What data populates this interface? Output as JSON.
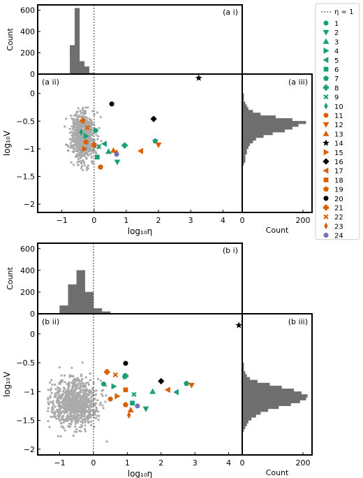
{
  "chart_data": {
    "type": "scatter",
    "reference_line_label": "η = 1",
    "legend": {
      "placement": "right",
      "entries": [
        {
          "id": "1",
          "marker": "circle",
          "color": "#1b9e77"
        },
        {
          "id": "2",
          "marker": "tri-down",
          "color": "#1b9e77"
        },
        {
          "id": "3",
          "marker": "tri-up",
          "color": "#1b9e77"
        },
        {
          "id": "4",
          "marker": "tri-right",
          "color": "#1b9e77"
        },
        {
          "id": "5",
          "marker": "tri-left",
          "color": "#1b9e77"
        },
        {
          "id": "6",
          "marker": "square",
          "color": "#1b9e77"
        },
        {
          "id": "7",
          "marker": "pentagon",
          "color": "#1b9e77"
        },
        {
          "id": "8",
          "marker": "plus",
          "color": "#1b9e77"
        },
        {
          "id": "9",
          "marker": "x",
          "color": "#1b9e77"
        },
        {
          "id": "10",
          "marker": "thin-diamond",
          "color": "#1b9e77"
        },
        {
          "id": "11",
          "marker": "circle",
          "color": "#d95f02"
        },
        {
          "id": "12",
          "marker": "tri-down",
          "color": "#d95f02"
        },
        {
          "id": "13",
          "marker": "tri-up",
          "color": "#d95f02"
        },
        {
          "id": "14",
          "marker": "star",
          "color": "#000000"
        },
        {
          "id": "15",
          "marker": "tri-right",
          "color": "#d95f02"
        },
        {
          "id": "16",
          "marker": "diamond",
          "color": "#000000"
        },
        {
          "id": "17",
          "marker": "tri-left",
          "color": "#d95f02"
        },
        {
          "id": "18",
          "marker": "square",
          "color": "#d95f02"
        },
        {
          "id": "19",
          "marker": "pentagon",
          "color": "#d95f02"
        },
        {
          "id": "20",
          "marker": "circle",
          "color": "#000000"
        },
        {
          "id": "21",
          "marker": "plus",
          "color": "#d95f02"
        },
        {
          "id": "22",
          "marker": "x",
          "color": "#d95f02"
        },
        {
          "id": "23",
          "marker": "thin-diamond",
          "color": "#d95f02"
        },
        {
          "id": "24",
          "marker": "circle",
          "color": "#7570b3"
        }
      ]
    },
    "panels": [
      {
        "id": "a",
        "top_hist": {
          "label": "(a i)",
          "ylabel": "Count",
          "ylim": [
            0,
            650
          ],
          "yticks": [
            0,
            200,
            400,
            600
          ],
          "bins": [
            [
              -0.75,
              -0.6,
              270
            ],
            [
              -0.6,
              -0.45,
              620
            ],
            [
              -0.45,
              -0.3,
              120
            ],
            [
              -0.3,
              -0.15,
              70
            ],
            [
              -0.15,
              0,
              10
            ]
          ]
        },
        "scatter": {
          "label": "(a ii)",
          "xlabel": "log₁₀η",
          "ylabel": "log₁₀V",
          "xlim": [
            -1.75,
            4.6
          ],
          "ylim": [
            -2.15,
            0.35
          ],
          "xticks": [
            -1,
            0,
            1,
            2,
            3,
            4
          ],
          "yticks": [
            -2.0,
            -1.5,
            -1.0,
            -0.5,
            0.0
          ],
          "cloud": {
            "center": [
              -0.35,
              -0.78
            ],
            "spread": [
              0.18,
              0.22
            ],
            "n": 700,
            "color": "#aaaaaa"
          },
          "points": [
            {
              "id": "1",
              "x": 0.05,
              "y": -0.67
            },
            {
              "id": "2",
              "x": 0.72,
              "y": -1.24
            },
            {
              "id": "3",
              "x": 0.45,
              "y": -1.05
            },
            {
              "id": "4",
              "x": -0.25,
              "y": -0.77
            },
            {
              "id": "5",
              "x": 0.32,
              "y": -0.91
            },
            {
              "id": "6",
              "x": 0.1,
              "y": -1.15
            },
            {
              "id": "7",
              "x": 1.9,
              "y": -0.86
            },
            {
              "id": "8",
              "x": 0.95,
              "y": -0.94
            },
            {
              "id": "9",
              "x": 0.15,
              "y": -0.96
            },
            {
              "id": "10",
              "x": -0.4,
              "y": -0.7
            },
            {
              "id": "11",
              "x": -0.25,
              "y": -0.88
            },
            {
              "id": "12",
              "x": 2.0,
              "y": -0.93
            },
            {
              "id": "13",
              "x": 0.6,
              "y": -1.03
            },
            {
              "id": "14",
              "x": 3.25,
              "y": 0.28
            },
            {
              "id": "15",
              "x": -0.3,
              "y": -1.0
            },
            {
              "id": "16",
              "x": 1.85,
              "y": -0.46
            },
            {
              "id": "17",
              "x": 1.45,
              "y": -1.04
            },
            {
              "id": "18",
              "x": 0.0,
              "y": -0.93
            },
            {
              "id": "19",
              "x": 0.2,
              "y": -1.33
            },
            {
              "id": "20",
              "x": 0.55,
              "y": -0.19
            },
            {
              "id": "21",
              "x": -0.35,
              "y": -0.49
            },
            {
              "id": "22",
              "x": -0.2,
              "y": -0.62
            },
            {
              "id": "23",
              "x": 0.7,
              "y": -1.07
            },
            {
              "id": "24",
              "x": 0.7,
              "y": -1.1
            }
          ]
        },
        "side_hist": {
          "label": "(a iii)",
          "xlabel": "Count",
          "xlim": [
            0,
            230
          ],
          "xticks": [
            0,
            200
          ],
          "bins": [
            [
              0.0,
              -0.05,
              5
            ],
            [
              -0.05,
              -0.1,
              5
            ],
            [
              -0.1,
              -0.15,
              5
            ],
            [
              -0.15,
              -0.2,
              10
            ],
            [
              -0.2,
              -0.25,
              15
            ],
            [
              -0.25,
              -0.3,
              20
            ],
            [
              -0.3,
              -0.35,
              35
            ],
            [
              -0.35,
              -0.4,
              60
            ],
            [
              -0.4,
              -0.45,
              110
            ],
            [
              -0.45,
              -0.5,
              165
            ],
            [
              -0.5,
              -0.55,
              210
            ],
            [
              -0.55,
              -0.6,
              185
            ],
            [
              -0.6,
              -0.65,
              165
            ],
            [
              -0.65,
              -0.7,
              140
            ],
            [
              -0.7,
              -0.75,
              100
            ],
            [
              -0.75,
              -0.8,
              70
            ],
            [
              -0.8,
              -0.85,
              45
            ],
            [
              -0.85,
              -0.9,
              35
            ],
            [
              -0.9,
              -0.95,
              25
            ],
            [
              -0.95,
              -1.0,
              20
            ],
            [
              -1.0,
              -1.05,
              15
            ],
            [
              -1.05,
              -1.1,
              15
            ],
            [
              -1.1,
              -1.15,
              10
            ],
            [
              -1.15,
              -1.2,
              10
            ],
            [
              -1.2,
              -1.25,
              10
            ],
            [
              -1.25,
              -1.3,
              5
            ]
          ]
        }
      },
      {
        "id": "b",
        "top_hist": {
          "label": "(b i)",
          "ylabel": "Count",
          "ylim": [
            0,
            650
          ],
          "yticks": [
            0,
            200,
            400,
            600
          ],
          "bins": [
            [
              -1.0,
              -0.75,
              75
            ],
            [
              -0.75,
              -0.5,
              270
            ],
            [
              -0.5,
              -0.25,
              400
            ],
            [
              -0.25,
              0,
              200
            ],
            [
              0,
              0.25,
              50
            ],
            [
              0.25,
              0.5,
              20
            ],
            [
              0.5,
              0.75,
              5
            ]
          ]
        },
        "scatter": {
          "label": "(b ii)",
          "xlabel": "log₁₀η",
          "ylabel": "log₁₀V",
          "xlim": [
            -1.65,
            4.4
          ],
          "ylim": [
            -2.1,
            0.35
          ],
          "xticks": [
            -1,
            0,
            1,
            2,
            3,
            4
          ],
          "yticks": [
            -2.0,
            -1.5,
            -1.0,
            -0.5,
            0.0
          ],
          "cloud": {
            "center": [
              -0.55,
              -1.2
            ],
            "spread": [
              0.35,
              0.2
            ],
            "n": 900,
            "color": "#aaaaaa"
          },
          "points": [
            {
              "id": "1",
              "x": 0.3,
              "y": -0.87
            },
            {
              "id": "2",
              "x": 1.55,
              "y": -1.3
            },
            {
              "id": "3",
              "x": 1.75,
              "y": -1.0
            },
            {
              "id": "4",
              "x": 0.6,
              "y": -0.91
            },
            {
              "id": "5",
              "x": 2.45,
              "y": -1.01
            },
            {
              "id": "6",
              "x": 1.15,
              "y": -1.2
            },
            {
              "id": "7",
              "x": 2.75,
              "y": -0.86
            },
            {
              "id": "8",
              "x": 0.95,
              "y": -0.73
            },
            {
              "id": "9",
              "x": 1.2,
              "y": -1.05
            },
            {
              "id": "10",
              "x": 0.9,
              "y": -0.74
            },
            {
              "id": "11",
              "x": 0.5,
              "y": -1.13
            },
            {
              "id": "12",
              "x": 2.9,
              "y": -0.89
            },
            {
              "id": "13",
              "x": 1.1,
              "y": -1.32
            },
            {
              "id": "14",
              "x": 4.3,
              "y": 0.15
            },
            {
              "id": "15",
              "x": 0.7,
              "y": -1.08
            },
            {
              "id": "16",
              "x": 2.0,
              "y": -0.82
            },
            {
              "id": "17",
              "x": 2.2,
              "y": -0.97
            },
            {
              "id": "18",
              "x": 0.95,
              "y": -0.97
            },
            {
              "id": "19",
              "x": 0.95,
              "y": -1.23
            },
            {
              "id": "20",
              "x": 0.95,
              "y": -0.51
            },
            {
              "id": "21",
              "x": 0.4,
              "y": -0.66
            },
            {
              "id": "22",
              "x": 0.65,
              "y": -0.71
            },
            {
              "id": "23",
              "x": 1.05,
              "y": -1.41
            },
            {
              "id": "24",
              "x": 1.3,
              "y": -1.25
            }
          ]
        },
        "side_hist": {
          "label": "(b iii)",
          "xlabel": "Count",
          "xlim": [
            0,
            230
          ],
          "xticks": [
            0,
            200
          ],
          "bins": [
            [
              -0.5,
              -0.55,
              5
            ],
            [
              -0.55,
              -0.6,
              5
            ],
            [
              -0.6,
              -0.65,
              5
            ],
            [
              -0.65,
              -0.7,
              10
            ],
            [
              -0.7,
              -0.75,
              15
            ],
            [
              -0.75,
              -0.8,
              25
            ],
            [
              -0.8,
              -0.85,
              50
            ],
            [
              -0.85,
              -0.9,
              90
            ],
            [
              -0.9,
              -0.95,
              130
            ],
            [
              -0.95,
              -1.0,
              170
            ],
            [
              -1.0,
              -1.05,
              195
            ],
            [
              -1.05,
              -1.1,
              215
            ],
            [
              -1.1,
              -1.15,
              210
            ],
            [
              -1.15,
              -1.2,
              190
            ],
            [
              -1.2,
              -1.25,
              160
            ],
            [
              -1.25,
              -1.3,
              120
            ],
            [
              -1.3,
              -1.35,
              85
            ],
            [
              -1.35,
              -1.4,
              60
            ],
            [
              -1.4,
              -1.45,
              45
            ],
            [
              -1.45,
              -1.5,
              30
            ],
            [
              -1.5,
              -1.55,
              20
            ],
            [
              -1.55,
              -1.6,
              15
            ],
            [
              -1.6,
              -1.65,
              10
            ],
            [
              -1.65,
              -1.7,
              5
            ]
          ]
        }
      }
    ]
  }
}
